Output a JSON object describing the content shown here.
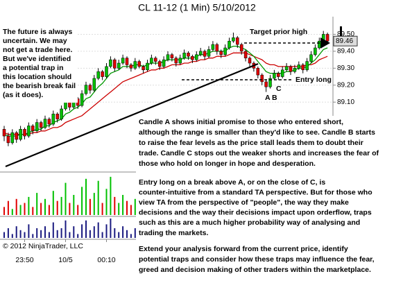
{
  "chart_data": {
    "type": "candlestick",
    "title": "CL 11-12 (1 Min)  5/10/2012",
    "copyright": "© 2012 NinjaTrader, LLC",
    "categories": [
      null,
      null,
      null,
      null,
      null,
      "23:50",
      null,
      null,
      null,
      null,
      null,
      null,
      null,
      null,
      null,
      "10/5",
      null,
      null,
      null,
      null,
      null,
      null,
      null,
      null,
      null,
      "00:10",
      null,
      null,
      null,
      null,
      null,
      null,
      null,
      null,
      null,
      null,
      null,
      null,
      null,
      null,
      null,
      null,
      null,
      null,
      null,
      null,
      null,
      null,
      null,
      null,
      null,
      null,
      null,
      null,
      null,
      null,
      null,
      null,
      null,
      null,
      null,
      null,
      null,
      null,
      null,
      null,
      null,
      null,
      null,
      null,
      null,
      null,
      null,
      null,
      null,
      null,
      null,
      null,
      null,
      null
    ],
    "ohlc": [
      [
        88.94,
        88.96,
        88.87,
        88.9
      ],
      [
        88.9,
        88.92,
        88.84,
        88.86
      ],
      [
        88.86,
        88.94,
        88.85,
        88.92
      ],
      [
        88.92,
        88.93,
        88.86,
        88.88
      ],
      [
        88.88,
        88.96,
        88.87,
        88.94
      ],
      [
        88.94,
        88.95,
        88.88,
        88.9
      ],
      [
        88.9,
        88.98,
        88.89,
        88.96
      ],
      [
        88.96,
        88.97,
        88.91,
        88.93
      ],
      [
        88.93,
        89.0,
        88.92,
        88.98
      ],
      [
        88.98,
        88.99,
        88.93,
        88.95
      ],
      [
        88.95,
        89.02,
        88.94,
        89.0
      ],
      [
        89.0,
        89.01,
        88.95,
        88.97
      ],
      [
        88.97,
        89.05,
        88.96,
        89.03
      ],
      [
        89.03,
        89.04,
        88.98,
        89.0
      ],
      [
        89.0,
        89.08,
        88.99,
        89.06
      ],
      [
        89.06,
        89.12,
        89.05,
        89.1
      ],
      [
        89.1,
        89.11,
        89.05,
        89.07
      ],
      [
        89.07,
        89.14,
        89.06,
        89.12
      ],
      [
        89.12,
        89.13,
        89.06,
        89.08
      ],
      [
        89.08,
        89.17,
        89.07,
        89.15
      ],
      [
        89.15,
        89.22,
        89.14,
        89.2
      ],
      [
        89.2,
        89.21,
        89.15,
        89.17
      ],
      [
        89.17,
        89.26,
        89.16,
        89.24
      ],
      [
        89.24,
        89.3,
        89.23,
        89.28
      ],
      [
        89.28,
        89.29,
        89.23,
        89.25
      ],
      [
        89.25,
        89.33,
        89.24,
        89.31
      ],
      [
        89.31,
        89.37,
        89.3,
        89.35
      ],
      [
        89.35,
        89.36,
        89.28,
        89.3
      ],
      [
        89.3,
        89.35,
        89.29,
        89.33
      ],
      [
        89.33,
        89.38,
        89.32,
        89.36
      ],
      [
        89.36,
        89.37,
        89.3,
        89.32
      ],
      [
        89.32,
        89.33,
        89.28,
        89.3
      ],
      [
        89.3,
        89.36,
        89.29,
        89.34
      ],
      [
        89.34,
        89.35,
        89.3,
        89.31
      ],
      [
        89.31,
        89.32,
        89.27,
        89.29
      ],
      [
        89.29,
        89.35,
        89.28,
        89.33
      ],
      [
        89.33,
        89.38,
        89.32,
        89.36
      ],
      [
        89.36,
        89.37,
        89.32,
        89.34
      ],
      [
        89.34,
        89.35,
        89.29,
        89.31
      ],
      [
        89.31,
        89.37,
        89.3,
        89.35
      ],
      [
        89.35,
        89.4,
        89.34,
        89.38
      ],
      [
        89.38,
        89.39,
        89.34,
        89.36
      ],
      [
        89.36,
        89.37,
        89.31,
        89.33
      ],
      [
        89.33,
        89.38,
        89.32,
        89.36
      ],
      [
        89.36,
        89.41,
        89.35,
        89.39
      ],
      [
        89.39,
        89.4,
        89.35,
        89.37
      ],
      [
        89.37,
        89.38,
        89.33,
        89.35
      ],
      [
        89.35,
        89.4,
        89.34,
        89.38
      ],
      [
        89.38,
        89.42,
        89.37,
        89.4
      ],
      [
        89.4,
        89.41,
        89.35,
        89.37
      ],
      [
        89.37,
        89.43,
        89.36,
        89.41
      ],
      [
        89.41,
        89.46,
        89.4,
        89.44
      ],
      [
        89.44,
        89.45,
        89.38,
        89.4
      ],
      [
        89.4,
        89.41,
        89.36,
        89.38
      ],
      [
        89.38,
        89.44,
        89.37,
        89.42
      ],
      [
        89.42,
        89.48,
        89.41,
        89.46
      ],
      [
        89.46,
        89.51,
        89.45,
        89.48
      ],
      [
        89.48,
        89.49,
        89.42,
        89.44
      ],
      [
        89.44,
        89.45,
        89.38,
        89.4
      ],
      [
        89.4,
        89.41,
        89.34,
        89.36
      ],
      [
        89.36,
        89.37,
        89.31,
        89.33
      ],
      [
        89.33,
        89.34,
        89.28,
        89.3
      ],
      [
        89.3,
        89.31,
        89.24,
        89.26
      ],
      [
        89.26,
        89.27,
        89.2,
        89.22
      ],
      [
        89.22,
        89.23,
        89.16,
        89.19
      ],
      [
        89.19,
        89.26,
        89.18,
        89.24
      ],
      [
        89.24,
        89.29,
        89.23,
        89.27
      ],
      [
        89.27,
        89.28,
        89.23,
        89.25
      ],
      [
        89.25,
        89.31,
        89.24,
        89.29
      ],
      [
        89.29,
        89.33,
        89.28,
        89.31
      ],
      [
        89.31,
        89.32,
        89.26,
        89.28
      ],
      [
        89.28,
        89.32,
        89.27,
        89.3
      ],
      [
        89.3,
        89.34,
        89.29,
        89.32
      ],
      [
        89.32,
        89.33,
        89.27,
        89.29
      ],
      [
        89.29,
        89.36,
        89.28,
        89.34
      ],
      [
        89.34,
        89.4,
        89.33,
        89.38
      ],
      [
        89.38,
        89.44,
        89.37,
        89.42
      ],
      [
        89.42,
        89.48,
        89.41,
        89.46
      ],
      [
        89.46,
        89.52,
        89.45,
        89.5
      ],
      [
        89.5,
        89.51,
        89.45,
        89.46
      ]
    ],
    "up_color": "#00c000",
    "down_color": "#e00000",
    "ma_fast": {
      "color": "#009900",
      "values": [
        88.91,
        88.9,
        88.9,
        88.9,
        88.91,
        88.91,
        88.92,
        88.93,
        88.94,
        88.94,
        88.96,
        88.96,
        88.98,
        88.99,
        89.0,
        89.03,
        89.04,
        89.06,
        89.07,
        89.09,
        89.12,
        89.13,
        89.16,
        89.19,
        89.21,
        89.24,
        89.27,
        89.28,
        89.29,
        89.31,
        89.31,
        89.31,
        89.32,
        89.32,
        89.31,
        89.32,
        89.33,
        89.33,
        89.33,
        89.34,
        89.35,
        89.35,
        89.35,
        89.35,
        89.36,
        89.36,
        89.36,
        89.37,
        89.38,
        89.38,
        89.39,
        89.4,
        89.4,
        89.4,
        89.4,
        89.42,
        89.43,
        89.43,
        89.42,
        89.41,
        89.39,
        89.37,
        89.34,
        89.31,
        89.28,
        89.27,
        89.27,
        89.27,
        89.27,
        89.28,
        89.28,
        89.29,
        89.3,
        89.3,
        89.31,
        89.33,
        89.35,
        89.38,
        89.41,
        89.42
      ]
    },
    "ma_slow": {
      "color": "#cc0000",
      "values": [
        88.92,
        88.91,
        88.91,
        88.91,
        88.91,
        88.91,
        88.91,
        88.92,
        88.92,
        88.93,
        88.93,
        88.94,
        88.95,
        88.95,
        88.96,
        88.98,
        88.99,
        89.0,
        89.01,
        89.02,
        89.04,
        89.06,
        89.08,
        89.1,
        89.12,
        89.14,
        89.16,
        89.18,
        89.2,
        89.22,
        89.23,
        89.24,
        89.25,
        89.26,
        89.27,
        89.28,
        89.29,
        89.29,
        89.3,
        89.3,
        89.31,
        89.32,
        89.32,
        89.32,
        89.33,
        89.33,
        89.34,
        89.34,
        89.35,
        89.35,
        89.36,
        89.36,
        89.37,
        89.37,
        89.37,
        89.38,
        89.39,
        89.39,
        89.39,
        89.39,
        89.38,
        89.37,
        89.36,
        89.35,
        89.33,
        89.32,
        89.32,
        89.31,
        89.31,
        89.31,
        89.31,
        89.31,
        89.31,
        89.31,
        89.32,
        89.32,
        89.33,
        89.35,
        89.36,
        89.37
      ]
    },
    "ylim": [
      88.7,
      89.6
    ],
    "yticks": [
      {
        "value": 89.5,
        "label": "89.50"
      },
      {
        "value": 89.4,
        "label": "89.40"
      },
      {
        "value": 89.3,
        "label": "89.30"
      },
      {
        "value": 89.2,
        "label": "89.20"
      },
      {
        "value": 89.1,
        "label": "89.10"
      }
    ],
    "last_price": 89.46,
    "grid": true,
    "volume": {
      "lim": [
        0,
        100
      ],
      "values": [
        20,
        35,
        15,
        40,
        25,
        30,
        45,
        20,
        55,
        30,
        40,
        25,
        60,
        35,
        45,
        80,
        30,
        50,
        25,
        70,
        90,
        40,
        55,
        85,
        30,
        65,
        95,
        45,
        30,
        50,
        35,
        25,
        40,
        30,
        20,
        45,
        55,
        30,
        25,
        40,
        50,
        30,
        25,
        35,
        45,
        30,
        20,
        35,
        40,
        30,
        45,
        60,
        35,
        25,
        40,
        70,
        85,
        40,
        35,
        30,
        25,
        30,
        35,
        45,
        60,
        50,
        40,
        30,
        35,
        40,
        25,
        30,
        35,
        25,
        40,
        50,
        55,
        60,
        75,
        45
      ]
    },
    "indicator": {
      "color": "#1a1a80",
      "lim": [
        0,
        10
      ],
      "values": [
        3,
        5,
        2,
        6,
        4,
        3,
        7,
        2,
        5,
        4,
        6,
        3,
        8,
        4,
        5,
        9,
        3,
        6,
        2,
        7,
        9,
        4,
        6,
        8,
        3,
        7,
        10,
        5,
        3,
        6,
        4,
        2,
        5,
        3,
        2,
        6,
        7,
        3,
        2,
        5,
        6,
        3,
        2,
        4,
        5,
        3,
        2,
        4,
        5,
        3,
        5,
        7,
        4,
        2,
        5,
        8,
        9,
        4,
        3,
        3,
        2,
        3,
        4,
        5,
        7,
        6,
        4,
        3,
        4,
        5,
        2,
        3,
        4,
        2,
        5,
        6,
        6,
        7,
        8,
        5
      ]
    },
    "annotations": {
      "left_note": [
        "The future is always",
        "uncertain. We may",
        "not get a trade here.",
        "But we've identified",
        "a potential trap in",
        "this location should",
        "the bearish break fail",
        "(as it does)."
      ],
      "target": "Target prior high",
      "entry": "Entry long",
      "a": "A",
      "b": "B",
      "c": "C",
      "para1": [
        "Candle A shows initial promise to those who entered short,",
        "although the range is smaller than they'd like to see. Candle B  starts",
        "to raise the fear levels as the price stall leads them to doubt their",
        "trade. Candle C stops out the weaker shorts and increases the fear of",
        "those who hold on longer in hope and desperation."
      ],
      "para2": [
        "Entry long on a break above A, or on the close of C, is",
        "counter-intuitive from a standard TA perspective. But for those who",
        "view TA from the perspective of \"people\", the way they make",
        "decisions and the way their decisions impact upon orderflow, traps",
        "such as this are a much higher probability way of analysing and",
        "trading the markets."
      ],
      "para3": [
        "Extend your analysis forward from the current price, identify",
        "potential traps and consider how these traps may influence the fear,",
        "greed and decision making of other traders within the marketplace."
      ]
    }
  }
}
